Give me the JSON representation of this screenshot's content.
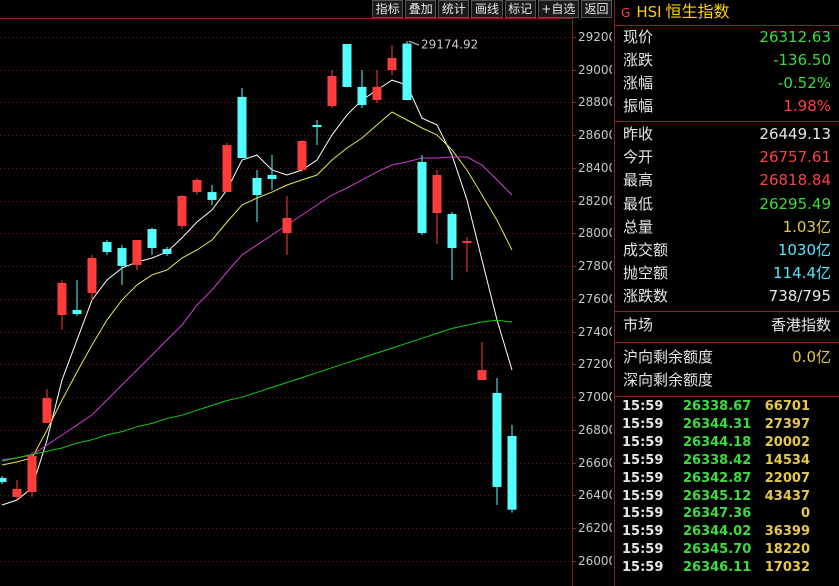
{
  "toolbar": [
    "指标",
    "叠加",
    "统计",
    "画线",
    "标记",
    "+自选",
    "返回"
  ],
  "chart_data": {
    "type": "candlestick",
    "ylim": [
      25847,
      29426
    ],
    "yticks": [
      26000,
      26200,
      26400,
      26600,
      26800,
      27000,
      27200,
      27400,
      27600,
      27800,
      28000,
      28200,
      28400,
      28600,
      28800,
      29000,
      29200
    ],
    "grid": true,
    "up_color": "#ff3c3c",
    "down_color": "#54ffff",
    "open": [
      26507,
      26391,
      26421,
      26843,
      27502,
      27533,
      27637,
      27948,
      27911,
      27808,
      28027,
      27905,
      28046,
      28253,
      28253,
      28253,
      28834,
      28339,
      28357,
      28003,
      28388,
      28663,
      28779,
      29157,
      28895,
      28815,
      28998,
      29160,
      28437,
      28125,
      28119,
      27942,
      27105,
      27026,
      26763
    ],
    "close": [
      26482,
      26440,
      26641,
      26995,
      27698,
      27508,
      27850,
      27887,
      27802,
      27960,
      27911,
      27875,
      28229,
      28327,
      28205,
      28540,
      28461,
      28235,
      28333,
      28095,
      28565,
      28650,
      28962,
      28895,
      28785,
      28895,
      29072,
      28815,
      28003,
      28357,
      27911,
      27954,
      27166,
      26452,
      26313
    ],
    "high": [
      26519,
      26495,
      26666,
      27050,
      27716,
      27716,
      27869,
      27960,
      27930,
      27960,
      28034,
      27918,
      28235,
      28339,
      28296,
      28553,
      28889,
      28388,
      28479,
      28229,
      28571,
      28693,
      28998,
      29157,
      28998,
      28998,
      29151,
      29174.92,
      28479,
      28388,
      28131,
      27979,
      27337,
      27117,
      26830
    ],
    "low": [
      26470,
      26372,
      26391,
      26843,
      27411,
      27496,
      27594,
      27869,
      27686,
      27777,
      27869,
      27863,
      28027,
      28235,
      28174,
      28253,
      28461,
      28070,
      28266,
      27869,
      28376,
      28540,
      28766,
      28895,
      28766,
      28797,
      28968,
      28815,
      27991,
      27936,
      27716,
      27765,
      27105,
      26342,
      26295.49
    ],
    "high_mark_index": 27,
    "lines": [
      {
        "color": "#ffffff",
        "values": [
          26342,
          26372,
          26446,
          26739,
          27105,
          27350,
          27594,
          27716,
          27789,
          27826,
          27850,
          27887,
          27973,
          28070,
          28144,
          28266,
          28449,
          28479,
          28388,
          28357,
          28388,
          28449,
          28602,
          28724,
          28815,
          28876,
          28937,
          28907,
          28705,
          28663,
          28479,
          28205,
          27838,
          27472,
          27166
        ]
      },
      {
        "color": "#e6e64a",
        "values": [
          26586,
          26605,
          26629,
          26800,
          26983,
          27154,
          27319,
          27472,
          27594,
          27686,
          27747,
          27777,
          27850,
          27899,
          27960,
          28070,
          28174,
          28217,
          28253,
          28296,
          28327,
          28357,
          28449,
          28522,
          28583,
          28663,
          28742,
          28693,
          28644,
          28602,
          28510,
          28388,
          28235,
          28082,
          27899
        ]
      },
      {
        "color": "#d23cd2",
        "values": [
          26617,
          26629,
          26647,
          26708,
          26769,
          26830,
          26892,
          26983,
          27075,
          27166,
          27258,
          27350,
          27441,
          27563,
          27655,
          27765,
          27869,
          27930,
          27991,
          28052,
          28113,
          28174,
          28235,
          28278,
          28327,
          28376,
          28418,
          28437,
          28461,
          28461,
          28467,
          28467,
          28418,
          28327,
          28235
        ]
      },
      {
        "color": "#14c814",
        "values": [
          26610,
          26630,
          26650,
          26670,
          26690,
          26720,
          26740,
          26770,
          26790,
          26820,
          26840,
          26870,
          26890,
          26920,
          26950,
          26980,
          27000,
          27030,
          27060,
          27090,
          27120,
          27150,
          27180,
          27210,
          27240,
          27270,
          27300,
          27330,
          27360,
          27390,
          27420,
          27440,
          27460,
          27470,
          27460
        ]
      }
    ]
  },
  "panel": {
    "mark": "G",
    "code": "HSI",
    "name": "恒生指数",
    "price_rows": [
      {
        "label": "现价",
        "value": "26312.63",
        "color": "#3cdc3c"
      },
      {
        "label": "涨跌",
        "value": "-136.50",
        "color": "#3cdc3c"
      },
      {
        "label": "涨幅",
        "value": "-0.52%",
        "color": "#3cdc3c"
      },
      {
        "label": "振幅",
        "value": "1.98%",
        "color": "#ff4040"
      }
    ],
    "stats_rows": [
      {
        "label": "昨收",
        "value": "26449.13",
        "color": "#e6e6e6"
      },
      {
        "label": "今开",
        "value": "26757.61",
        "color": "#ff4040"
      },
      {
        "label": "最高",
        "value": "26818.84",
        "color": "#ff4040"
      },
      {
        "label": "最低",
        "value": "26295.49",
        "color": "#3cdc3c"
      },
      {
        "label": "总量",
        "value": "1.03亿",
        "color": "#e6c84a"
      },
      {
        "label": "成交额",
        "value": "1030亿",
        "color": "#54e6ff"
      },
      {
        "label": "抛空额",
        "value": "114.4亿",
        "color": "#54e6ff"
      },
      {
        "label": "涨跌数",
        "value": "738/795",
        "color": "#e6e6e6"
      }
    ],
    "market": {
      "label": "市场",
      "value": "香港指数"
    },
    "quota_rows": [
      {
        "label": "沪向剩余额度",
        "value": "0.0亿",
        "color": "#e6c84a"
      },
      {
        "label": "深向剩余额度"
      }
    ],
    "trades": [
      [
        "15:59",
        "26338.67",
        "66701"
      ],
      [
        "15:59",
        "26344.31",
        "27397"
      ],
      [
        "15:59",
        "26344.18",
        "20002"
      ],
      [
        "15:59",
        "26338.42",
        "14534"
      ],
      [
        "15:59",
        "26342.87",
        "22007"
      ],
      [
        "15:59",
        "26345.12",
        "43437"
      ],
      [
        "15:59",
        "26347.36",
        "0"
      ],
      [
        "15:59",
        "26344.02",
        "36399"
      ],
      [
        "15:59",
        "26345.70",
        "18220"
      ],
      [
        "15:59",
        "26346.11",
        "17032"
      ]
    ]
  }
}
